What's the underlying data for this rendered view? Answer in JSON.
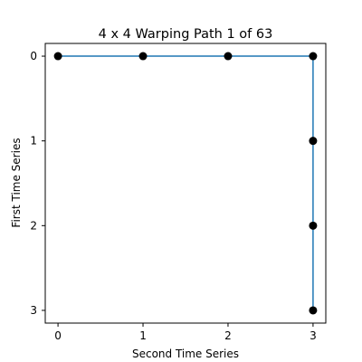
{
  "chart_data": {
    "type": "line",
    "title": "4 x 4 Warping Path 1 of 63",
    "xlabel": "Second Time Series",
    "ylabel": "First Time Series",
    "xticks": [
      "0",
      "1",
      "2",
      "3"
    ],
    "yticks": [
      "0",
      "1",
      "2",
      "3"
    ],
    "xlim": [
      -0.15,
      3.15
    ],
    "ylim": [
      3.15,
      -0.15
    ],
    "y_axis_inverted": true,
    "grid": false,
    "series": [
      {
        "x": [
          0,
          1,
          2,
          3,
          3,
          3,
          3
        ],
        "y": [
          0,
          0,
          0,
          0,
          1,
          2,
          3
        ],
        "line_color": "#1f77b4",
        "marker_color": "#000000"
      }
    ]
  }
}
